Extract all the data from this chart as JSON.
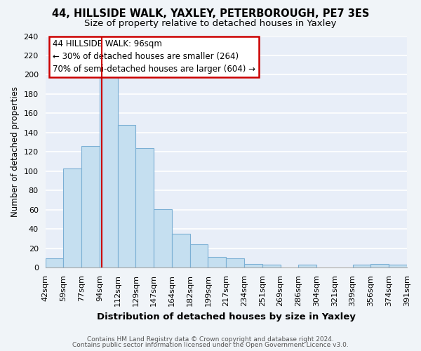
{
  "title1": "44, HILLSIDE WALK, YAXLEY, PETERBOROUGH, PE7 3ES",
  "title2": "Size of property relative to detached houses in Yaxley",
  "xlabel": "Distribution of detached houses by size in Yaxley",
  "ylabel": "Number of detached properties",
  "footer1": "Contains HM Land Registry data © Crown copyright and database right 2024.",
  "footer2": "Contains public sector information licensed under the Open Government Licence v3.0.",
  "bin_labels": [
    "42sqm",
    "59sqm",
    "77sqm",
    "94sqm",
    "112sqm",
    "129sqm",
    "147sqm",
    "164sqm",
    "182sqm",
    "199sqm",
    "217sqm",
    "234sqm",
    "251sqm",
    "269sqm",
    "286sqm",
    "304sqm",
    "321sqm",
    "339sqm",
    "356sqm",
    "374sqm",
    "391sqm"
  ],
  "bar_heights": [
    10,
    103,
    126,
    199,
    148,
    124,
    61,
    35,
    24,
    11,
    10,
    4,
    3,
    0,
    3,
    0,
    0,
    3,
    4,
    3
  ],
  "bar_color": "#c5dff0",
  "bar_edge_color": "#7bafd4",
  "background_color": "#f0f4f8",
  "plot_bg_color": "#e8eef8",
  "grid_color": "#ffffff",
  "annotation_box_edge_color": "#cc0000",
  "annotation_line1": "44 HILLSIDE WALK: 96sqm",
  "annotation_line2": "← 30% of detached houses are smaller (264)",
  "annotation_line3": "70% of semi-detached houses are larger (604) →",
  "marker_line_color": "#cc0000",
  "ylim": [
    0,
    240
  ],
  "yticks": [
    0,
    20,
    40,
    60,
    80,
    100,
    120,
    140,
    160,
    180,
    200,
    220,
    240
  ],
  "title1_fontsize": 10.5,
  "title2_fontsize": 9.5,
  "xlabel_fontsize": 9.5,
  "ylabel_fontsize": 8.5,
  "tick_fontsize": 8.0,
  "footer_fontsize": 6.5,
  "annotation_fontsize": 8.5
}
